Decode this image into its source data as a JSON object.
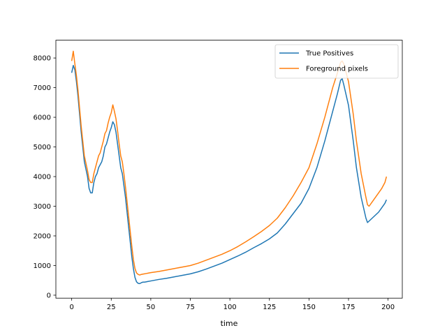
{
  "chart_data": {
    "type": "line",
    "title": "",
    "xlabel": "time",
    "ylabel": "",
    "xlim": [
      -10,
      209
    ],
    "ylim": [
      -100,
      8600
    ],
    "xticks": [
      0,
      25,
      50,
      75,
      100,
      125,
      150,
      175,
      200
    ],
    "yticks": [
      0,
      1000,
      2000,
      3000,
      4000,
      5000,
      6000,
      7000,
      8000
    ],
    "grid": false,
    "legend_position": "top-right",
    "series": [
      {
        "name": "True Positives",
        "color": "#1f77b4",
        "x": [
          0,
          1,
          2,
          3,
          4,
          5,
          6,
          7,
          8,
          9,
          10,
          11,
          12,
          13,
          14,
          15,
          16,
          17,
          18,
          19,
          20,
          21,
          22,
          23,
          24,
          25,
          26,
          27,
          28,
          29,
          30,
          31,
          32,
          33,
          34,
          35,
          36,
          37,
          38,
          39,
          40,
          41,
          42,
          43,
          44,
          45,
          46,
          47,
          48,
          50,
          55,
          60,
          65,
          70,
          75,
          80,
          85,
          90,
          95,
          100,
          105,
          110,
          115,
          120,
          125,
          130,
          135,
          140,
          145,
          150,
          155,
          160,
          165,
          168,
          170,
          171,
          172,
          175,
          178,
          180,
          183,
          186,
          187,
          188,
          190,
          192,
          194,
          196,
          198,
          199
        ],
        "y": [
          7500,
          7750,
          7600,
          7200,
          6700,
          6100,
          5500,
          5000,
          4500,
          4250,
          4000,
          3600,
          3450,
          3450,
          3800,
          4000,
          4100,
          4300,
          4400,
          4500,
          4700,
          5000,
          5100,
          5300,
          5500,
          5650,
          5850,
          5750,
          5500,
          5100,
          4700,
          4300,
          4100,
          3700,
          3300,
          2800,
          2300,
          1800,
          1300,
          900,
          600,
          450,
          400,
          390,
          420,
          440,
          440,
          450,
          460,
          480,
          530,
          570,
          620,
          670,
          720,
          790,
          880,
          980,
          1080,
          1200,
          1320,
          1450,
          1600,
          1740,
          1900,
          2100,
          2400,
          2750,
          3100,
          3600,
          4300,
          5200,
          6200,
          6800,
          7250,
          7300,
          7100,
          6400,
          5200,
          4300,
          3300,
          2600,
          2450,
          2500,
          2600,
          2700,
          2800,
          2950,
          3100,
          3220
        ]
      },
      {
        "name": "Foreground pixels",
        "color": "#ff7f0e",
        "x": [
          0,
          1,
          2,
          3,
          4,
          5,
          6,
          7,
          8,
          9,
          10,
          11,
          12,
          13,
          14,
          15,
          16,
          17,
          18,
          19,
          20,
          21,
          22,
          23,
          24,
          25,
          26,
          27,
          28,
          29,
          30,
          31,
          32,
          33,
          34,
          35,
          36,
          37,
          38,
          39,
          40,
          41,
          42,
          43,
          44,
          45,
          46,
          47,
          48,
          50,
          55,
          60,
          65,
          70,
          75,
          80,
          85,
          90,
          95,
          100,
          105,
          110,
          115,
          120,
          125,
          130,
          135,
          140,
          145,
          150,
          155,
          160,
          165,
          168,
          170,
          171,
          172,
          175,
          178,
          180,
          183,
          186,
          187,
          188,
          190,
          192,
          194,
          196,
          198,
          199
        ],
        "y": [
          7900,
          8230,
          7800,
          7400,
          6900,
          6300,
          5700,
          5200,
          4700,
          4450,
          4200,
          3900,
          3800,
          3800,
          4100,
          4300,
          4500,
          4700,
          4800,
          5000,
          5200,
          5450,
          5550,
          5800,
          6000,
          6150,
          6420,
          6200,
          5950,
          5550,
          5100,
          4700,
          4500,
          4100,
          3650,
          3150,
          2650,
          2150,
          1650,
          1200,
          900,
          750,
          700,
          680,
          700,
          710,
          720,
          730,
          740,
          760,
          800,
          850,
          900,
          950,
          1000,
          1080,
          1180,
          1280,
          1380,
          1500,
          1640,
          1800,
          1970,
          2150,
          2350,
          2600,
          2950,
          3350,
          3800,
          4300,
          5100,
          6000,
          7000,
          7500,
          7850,
          7900,
          7800,
          7200,
          6100,
          5200,
          4100,
          3300,
          3050,
          3000,
          3150,
          3300,
          3450,
          3600,
          3800,
          4000
        ]
      }
    ]
  }
}
